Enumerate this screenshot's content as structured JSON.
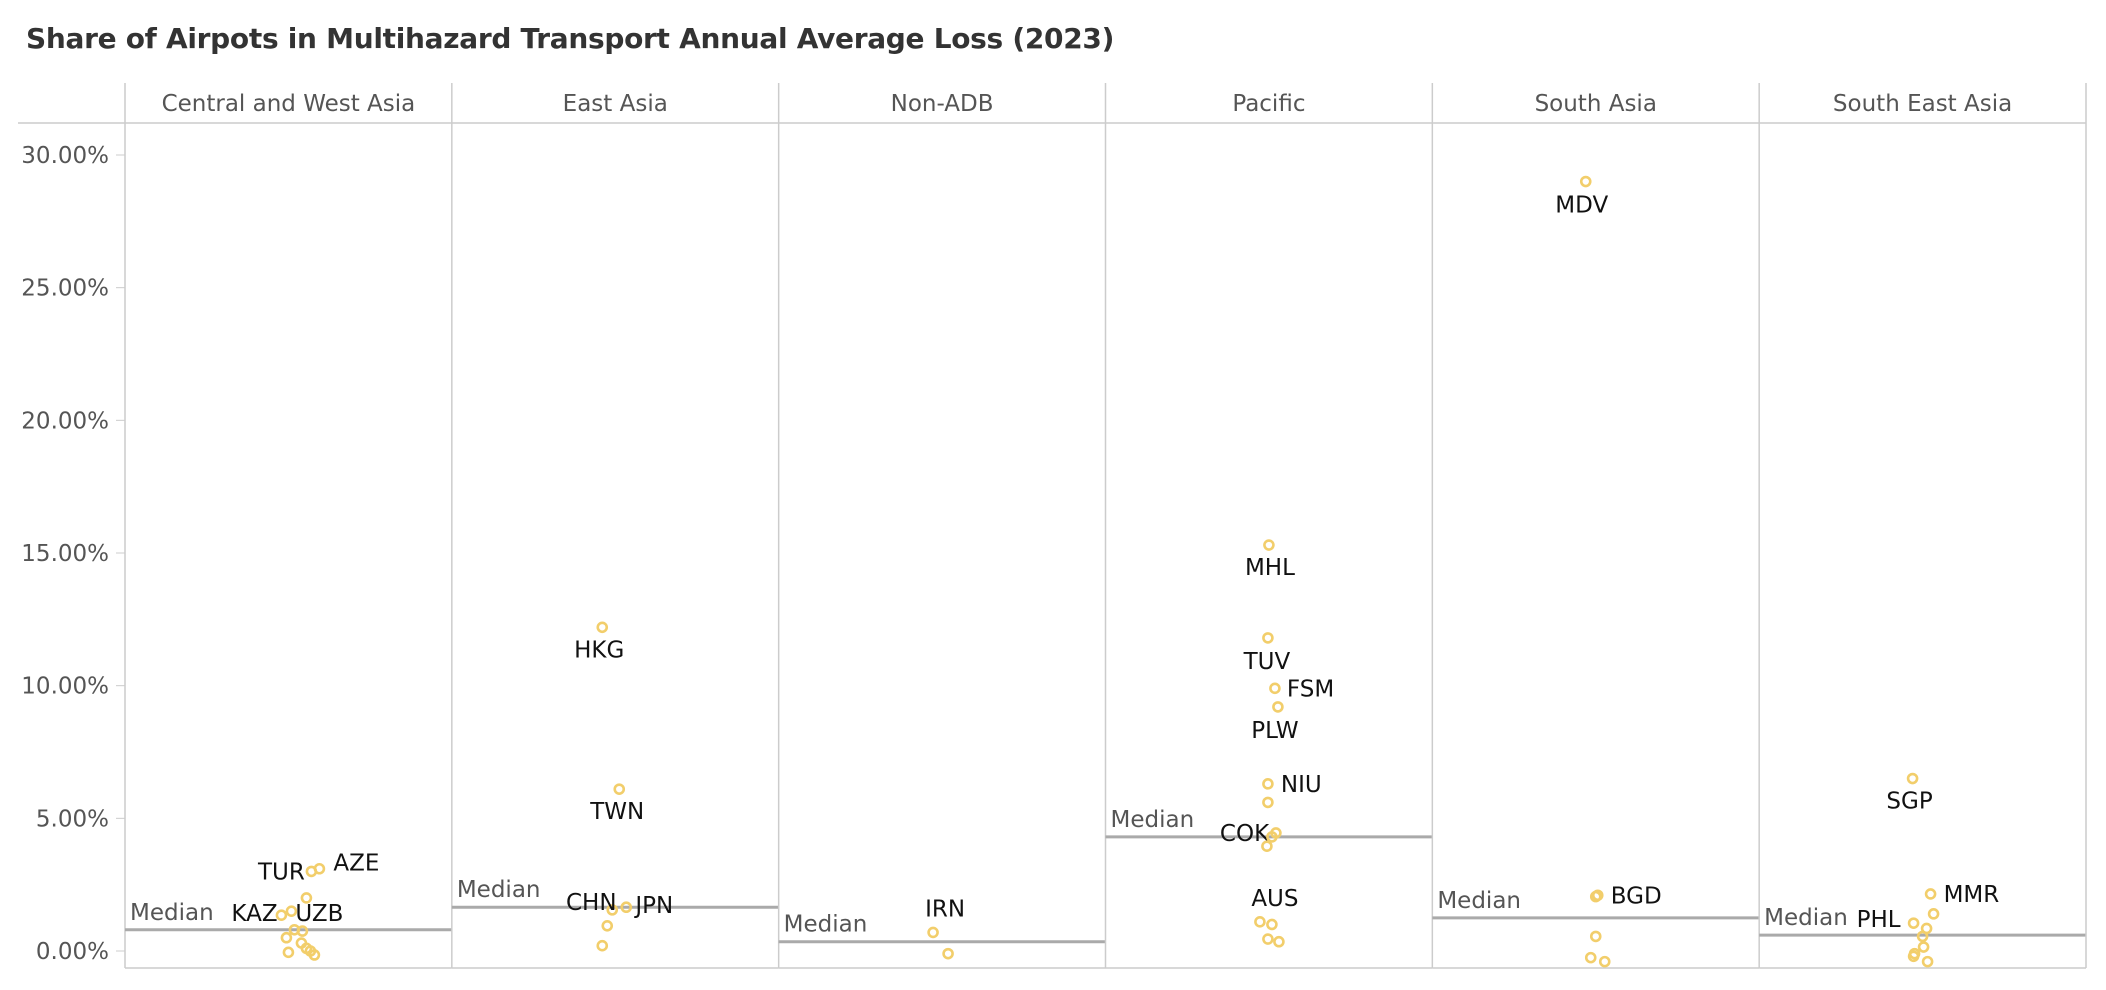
{
  "chart_data": {
    "type": "scatter",
    "title": "Share of Airpots in Multihazard Transport Annual Average Loss (2023)",
    "ylim": [
      0,
      30
    ],
    "yticks": [
      0,
      5,
      10,
      15,
      20,
      25,
      30
    ],
    "ytick_labels": [
      "0.00%",
      "5.00%",
      "10.00%",
      "15.00%",
      "20.00%",
      "25.00%",
      "30.00%"
    ],
    "grid": false,
    "median_label": "Median",
    "colors": {
      "point": "#F2CE6B",
      "median": "#AAAAAA",
      "border": "#CCCCCC",
      "text": "#555555"
    },
    "panels": [
      {
        "name": "Central and West Asia",
        "median": 0.8,
        "points": [
          {
            "label": "TUR",
            "y": 3.0
          },
          {
            "label": "AZE",
            "y": 3.1
          },
          {
            "label": "KAZ",
            "y": 1.5
          },
          {
            "label": "UZB",
            "y": 1.35
          },
          {
            "label": "",
            "y": 2.0
          },
          {
            "label": "",
            "y": 0.8
          },
          {
            "label": "",
            "y": 0.75
          },
          {
            "label": "",
            "y": 0.5
          },
          {
            "label": "",
            "y": 0.3
          },
          {
            "label": "",
            "y": 0.1
          },
          {
            "label": "",
            "y": 0.0
          },
          {
            "label": "",
            "y": -0.05
          },
          {
            "label": "",
            "y": -0.15
          }
        ]
      },
      {
        "name": "East Asia",
        "median": 1.65,
        "points": [
          {
            "label": "HKG",
            "y": 12.2
          },
          {
            "label": "TWN",
            "y": 6.1
          },
          {
            "label": "CHN",
            "y": 1.55
          },
          {
            "label": "JPN",
            "y": 1.65
          },
          {
            "label": "",
            "y": 0.95
          },
          {
            "label": "",
            "y": 0.2
          }
        ]
      },
      {
        "name": "Non-ADB",
        "median": 0.35,
        "points": [
          {
            "label": "IRN",
            "y": 0.7
          },
          {
            "label": "",
            "y": -0.1
          }
        ]
      },
      {
        "name": "Pacific",
        "median": 4.3,
        "points": [
          {
            "label": "MHL",
            "y": 15.3
          },
          {
            "label": "TUV",
            "y": 11.8
          },
          {
            "label": "FSM",
            "y": 9.9
          },
          {
            "label": "PLW",
            "y": 9.2
          },
          {
            "label": "NIU",
            "y": 6.3
          },
          {
            "label": "COK",
            "y": 4.45
          },
          {
            "label": "AUS",
            "y": 1.1
          },
          {
            "label": "",
            "y": 5.6
          },
          {
            "label": "",
            "y": 4.3
          },
          {
            "label": "",
            "y": 3.95
          },
          {
            "label": "",
            "y": 1.0
          },
          {
            "label": "",
            "y": 0.45
          },
          {
            "label": "",
            "y": 0.35
          }
        ]
      },
      {
        "name": "South Asia",
        "median": 1.25,
        "points": [
          {
            "label": "MDV",
            "y": 29.0
          },
          {
            "label": "BGD",
            "y": 2.1
          },
          {
            "label": "",
            "y": 2.05
          },
          {
            "label": "",
            "y": 0.55
          },
          {
            "label": "",
            "y": -0.25
          },
          {
            "label": "",
            "y": -0.4
          }
        ]
      },
      {
        "name": "South East Asia",
        "median": 0.6,
        "points": [
          {
            "label": "SGP",
            "y": 6.5
          },
          {
            "label": "MMR",
            "y": 2.15
          },
          {
            "label": "PHL",
            "y": 1.05
          },
          {
            "label": "",
            "y": 1.4
          },
          {
            "label": "",
            "y": 0.85
          },
          {
            "label": "",
            "y": 0.55
          },
          {
            "label": "",
            "y": 0.15
          },
          {
            "label": "",
            "y": -0.1
          },
          {
            "label": "",
            "y": -0.2
          },
          {
            "label": "",
            "y": -0.4
          }
        ]
      }
    ]
  }
}
